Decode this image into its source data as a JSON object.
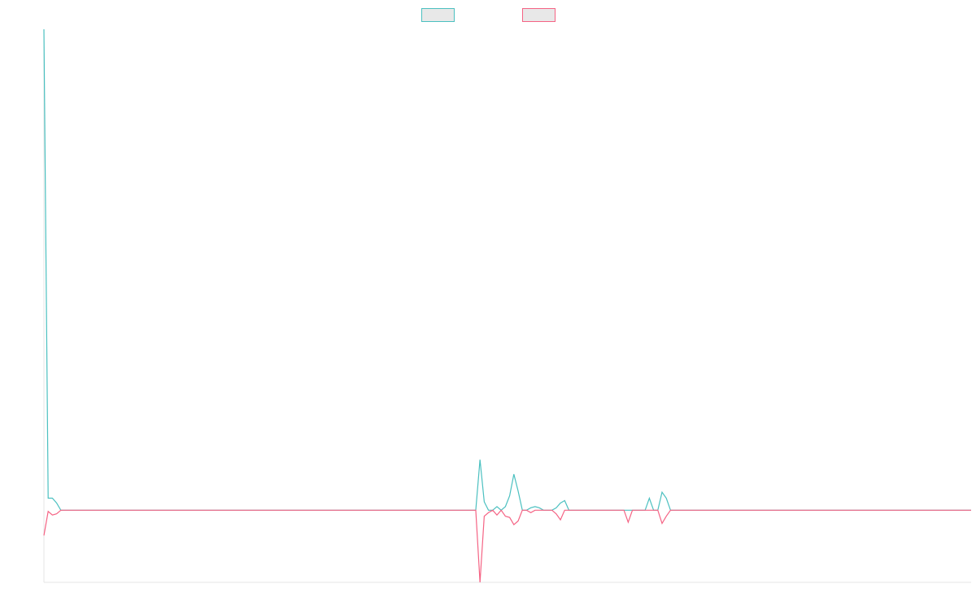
{
  "chart_data": {
    "type": "line",
    "title": "",
    "xlabel": "",
    "ylabel": "",
    "grid": false,
    "legend_position": "top-center",
    "x_range": [
      0,
      219
    ],
    "ylim": [
      -6,
      40
    ],
    "series": [
      {
        "color": "#4bc0c0",
        "fill": "#e8e8e8",
        "points": [
          [
            0,
            40
          ],
          [
            1,
            1
          ],
          [
            2,
            1
          ],
          [
            3,
            0.6
          ],
          [
            4,
            0
          ],
          [
            102,
            0
          ],
          [
            103,
            4.2
          ],
          [
            104,
            0.7
          ],
          [
            105,
            0
          ],
          [
            106,
            0
          ],
          [
            107,
            0.3
          ],
          [
            108,
            0
          ],
          [
            109,
            0.3
          ],
          [
            110,
            1.2
          ],
          [
            111,
            3
          ],
          [
            112,
            1.6
          ],
          [
            113,
            0
          ],
          [
            114,
            0
          ],
          [
            115,
            0.2
          ],
          [
            116,
            0.3
          ],
          [
            117,
            0.2
          ],
          [
            118,
            0
          ],
          [
            119,
            0
          ],
          [
            120,
            0
          ],
          [
            121,
            0.2
          ],
          [
            122,
            0.6
          ],
          [
            123,
            0.8
          ],
          [
            124,
            0
          ],
          [
            125,
            0
          ],
          [
            142,
            0
          ],
          [
            143,
            1
          ],
          [
            144,
            0
          ],
          [
            145,
            0
          ],
          [
            146,
            1.5
          ],
          [
            147,
            1
          ],
          [
            148,
            0
          ],
          [
            219,
            0
          ]
        ]
      },
      {
        "color": "#f56384",
        "fill": "#e8e8e8",
        "points": [
          [
            0,
            -2.1
          ],
          [
            1,
            -0.1
          ],
          [
            2,
            -0.4
          ],
          [
            3,
            -0.3
          ],
          [
            4,
            0
          ],
          [
            102,
            0
          ],
          [
            103,
            -6
          ],
          [
            104,
            -0.5
          ],
          [
            105,
            -0.2
          ],
          [
            106,
            0
          ],
          [
            107,
            -0.4
          ],
          [
            108,
            0
          ],
          [
            109,
            -0.5
          ],
          [
            110,
            -0.6
          ],
          [
            111,
            -1.2
          ],
          [
            112,
            -0.9
          ],
          [
            113,
            0
          ],
          [
            114,
            0
          ],
          [
            115,
            -0.2
          ],
          [
            116,
            0
          ],
          [
            117,
            0
          ],
          [
            118,
            0
          ],
          [
            119,
            0
          ],
          [
            120,
            0
          ],
          [
            121,
            -0.3
          ],
          [
            122,
            -0.8
          ],
          [
            123,
            0
          ],
          [
            124,
            0
          ],
          [
            136,
            0
          ],
          [
            137,
            0
          ],
          [
            138,
            -1
          ],
          [
            139,
            0
          ],
          [
            140,
            0
          ],
          [
            145,
            0
          ],
          [
            146,
            -1.1
          ],
          [
            147,
            -0.5
          ],
          [
            148,
            0
          ],
          [
            219,
            0
          ]
        ]
      }
    ]
  }
}
